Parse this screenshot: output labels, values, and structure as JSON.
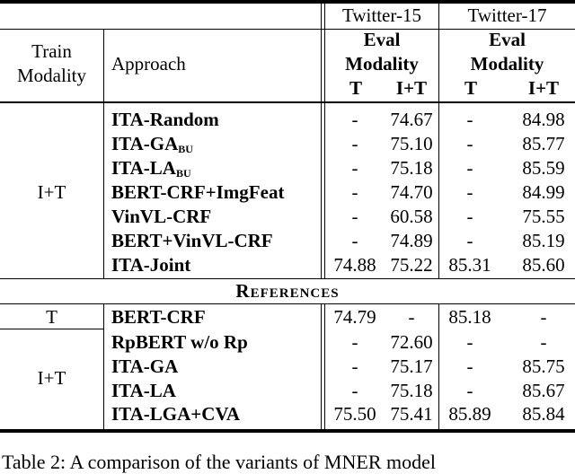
{
  "header": {
    "datasets": [
      "Twitter-15",
      "Twitter-17"
    ],
    "train_modality": [
      "Train",
      "Modality"
    ],
    "approach": "Approach",
    "eval_modality": [
      "Eval",
      "Modality"
    ],
    "eval_cols": [
      "T",
      "I+T"
    ]
  },
  "main_group": {
    "train_modality": "I+T",
    "rows": [
      {
        "name": "ITA-Random",
        "sub": "",
        "t15_t": "-",
        "t15_it": "74.67",
        "t17_t": "-",
        "t17_it": "84.98"
      },
      {
        "name": "ITA-GA",
        "sub": "BU",
        "t15_t": "-",
        "t15_it": "75.10",
        "t17_t": "-",
        "t17_it": "85.77"
      },
      {
        "name": "ITA-LA",
        "sub": "BU",
        "t15_t": "-",
        "t15_it": "75.18",
        "t17_t": "-",
        "t17_it": "85.59"
      },
      {
        "name": "BERT-CRF+ImgFeat",
        "sub": "",
        "t15_t": "-",
        "t15_it": "74.70",
        "t17_t": "-",
        "t17_it": "84.99"
      },
      {
        "name": "VinVL-CRF",
        "sub": "",
        "t15_t": "-",
        "t15_it": "60.58",
        "t17_t": "-",
        "t17_it": "75.55"
      },
      {
        "name": "BERT+VinVL-CRF",
        "sub": "",
        "t15_t": "-",
        "t15_it": "74.89",
        "t17_t": "-",
        "t17_it": "85.19"
      },
      {
        "name": "ITA-Joint",
        "sub": "",
        "t15_t": "74.88",
        "t15_it": "75.22",
        "t17_t": "85.31",
        "t17_it": "85.60"
      }
    ]
  },
  "references": {
    "label": "References",
    "groups": [
      {
        "train_modality": "T",
        "rows": [
          {
            "name": "BERT-CRF",
            "sub": "",
            "t15_t": "74.79",
            "t15_it": "-",
            "t17_t": "85.18",
            "t17_it": "-"
          }
        ]
      },
      {
        "train_modality": "I+T",
        "rows": [
          {
            "name": "RpBERT w/o Rp",
            "sub": "",
            "t15_t": "-",
            "t15_it": "72.60",
            "t17_t": "-",
            "t17_it": "-"
          },
          {
            "name": "ITA-GA",
            "sub": "",
            "t15_t": "-",
            "t15_it": "75.17",
            "t17_t": "-",
            "t17_it": "85.75"
          },
          {
            "name": "ITA-LA",
            "sub": "",
            "t15_t": "-",
            "t15_it": "75.18",
            "t17_t": "-",
            "t17_it": "85.67"
          },
          {
            "name": "ITA-LGA+CVA",
            "sub": "",
            "t15_t": "75.50",
            "t15_it": "75.41",
            "t17_t": "85.89",
            "t17_it": "85.84"
          }
        ]
      }
    ]
  },
  "caption": "Table 2: A comparison of the variants of MNER model"
}
